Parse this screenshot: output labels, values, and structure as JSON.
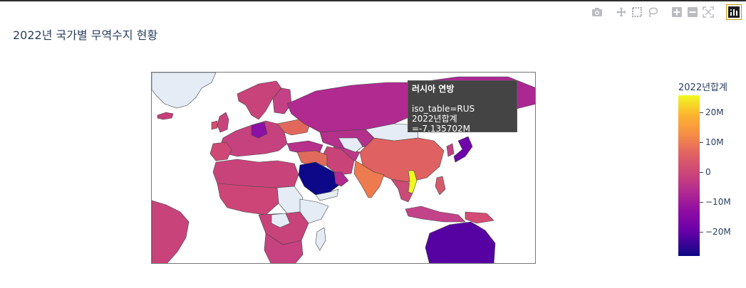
{
  "page": {
    "title": "2022년 국가별 무역수지 현황"
  },
  "modebar": {
    "buttons": [
      {
        "name": "camera-icon",
        "tip": "Download plot as a png"
      },
      {
        "name": "pan-icon",
        "tip": "Pan"
      },
      {
        "name": "box-select-icon",
        "tip": "Box Select"
      },
      {
        "name": "lasso-icon",
        "tip": "Lasso Select"
      },
      {
        "name": "zoom-in-icon",
        "tip": "Zoom in"
      },
      {
        "name": "zoom-out-icon",
        "tip": "Zoom out"
      },
      {
        "name": "reset-view-icon",
        "tip": "Reset"
      },
      {
        "name": "plotly-logo-icon",
        "tip": "Produced with Plotly"
      }
    ]
  },
  "tooltip": {
    "country": "러시아 연방",
    "line_iso": "iso_table=RUS",
    "line_value": "2022년합계=-7.135702M"
  },
  "colorbar": {
    "title": "2022년합계",
    "ticks": [
      "20M",
      "10M",
      "0",
      "−10M",
      "−20M"
    ],
    "colorscale": [
      "#0d0887",
      "#6a00a8",
      "#8f0da4",
      "#b12a90",
      "#cc4778",
      "#e16462",
      "#f68f44",
      "#fdb42f",
      "#f0f921"
    ]
  },
  "colors": {
    "missing": "#e5ecf6",
    "ocean": "#ffffff",
    "border": "#444444"
  }
}
